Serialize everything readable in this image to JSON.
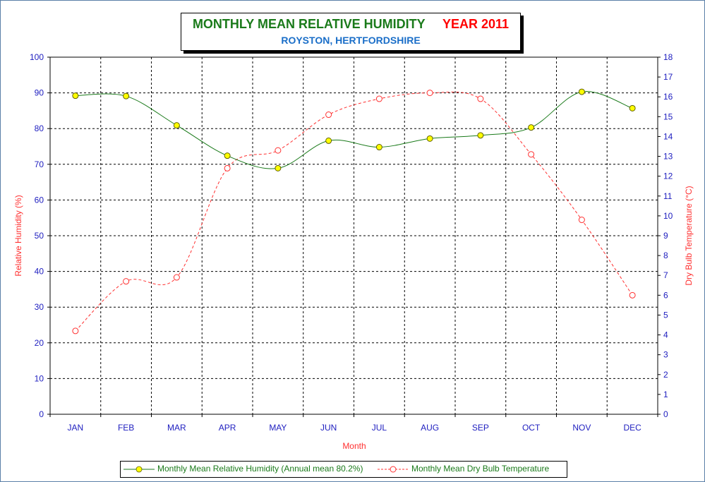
{
  "chart_data": {
    "type": "line",
    "title": "MONTHLY MEAN RELATIVE HUMIDITY",
    "title_year": "YEAR 2011",
    "subtitle": "ROYSTON, HERTFORDSHIRE",
    "xlabel": "Month",
    "ylabel_left": "Relative Humidity (%)",
    "ylabel_right": "Dry Bulb Temperature (°C)",
    "categories": [
      "JAN",
      "FEB",
      "MAR",
      "APR",
      "MAY",
      "JUN",
      "JUL",
      "AUG",
      "SEP",
      "OCT",
      "NOV",
      "DEC"
    ],
    "y_left": {
      "min": 0,
      "max": 100,
      "step": 10,
      "ticks": [
        "0",
        "10",
        "20",
        "30",
        "40",
        "50",
        "60",
        "70",
        "80",
        "90",
        "100"
      ]
    },
    "y_right": {
      "min": 0,
      "max": 18,
      "step": 1,
      "ticks": [
        "0",
        "1",
        "2",
        "3",
        "4",
        "5",
        "6",
        "7",
        "8",
        "9",
        "10",
        "11",
        "12",
        "13",
        "14",
        "15",
        "16",
        "17",
        "18"
      ]
    },
    "grid": true,
    "legend_position": "bottom",
    "series": [
      {
        "name": "Monthly Mean Relative Humidity (Annual mean 80.2%)",
        "axis": "left",
        "color": "#1a7a1a",
        "marker_fill": "#ffff00",
        "line_style": "solid",
        "values": [
          89.2,
          89.1,
          80.9,
          72.4,
          68.9,
          76.6,
          74.8,
          77.2,
          78.1,
          80.3,
          90.3,
          85.7
        ]
      },
      {
        "name": "Monthly Mean Dry Bulb Temperature",
        "axis": "right",
        "color": "#ff3030",
        "marker_fill": "#ffffff",
        "line_style": "dashed",
        "values": [
          4.2,
          6.7,
          6.9,
          12.4,
          13.3,
          15.1,
          15.9,
          16.2,
          15.9,
          13.1,
          9.8,
          6.0
        ]
      }
    ]
  },
  "colors": {
    "title": "#1a7a1a",
    "year": "#ff0000",
    "subtitle": "#1a6ec8",
    "axis_text": "#2020c0",
    "axis_title": "#ff3030",
    "frame": "#5a7fa8"
  }
}
